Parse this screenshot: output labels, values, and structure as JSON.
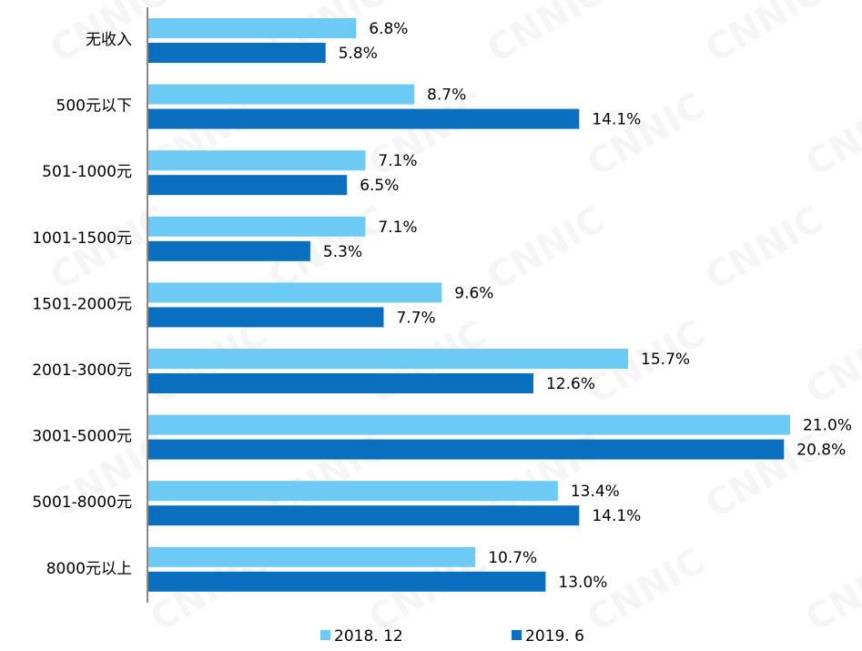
{
  "chart_data": {
    "type": "bar",
    "orientation": "horizontal",
    "categories": [
      "无收入",
      "500元以下",
      "501-1000元",
      "1001-1500元",
      "1501-2000元",
      "2001-3000元",
      "3001-5000元",
      "5001-8000元",
      "8000元以上"
    ],
    "series": [
      {
        "name": "2018. 12",
        "color": "#6dcaf5",
        "values": [
          6.8,
          8.7,
          7.1,
          7.1,
          9.6,
          15.7,
          21.0,
          13.4,
          10.7
        ],
        "value_labels": [
          "6.8%",
          "8.7%",
          "7.1%",
          "7.1%",
          "9.6%",
          "15.7%",
          "21.0%",
          "13.4%",
          "10.7%"
        ]
      },
      {
        "name": "2019. 6",
        "color": "#0b6fbf",
        "values": [
          5.8,
          14.1,
          6.5,
          5.3,
          7.7,
          12.6,
          20.8,
          14.1,
          13.0
        ],
        "value_labels": [
          "5.8%",
          "14.1%",
          "6.5%",
          "5.3%",
          "7.7%",
          "12.6%",
          "20.8%",
          "14.1%",
          "13.0%"
        ]
      }
    ],
    "legend": "bottom",
    "watermark": "CNNIC"
  }
}
